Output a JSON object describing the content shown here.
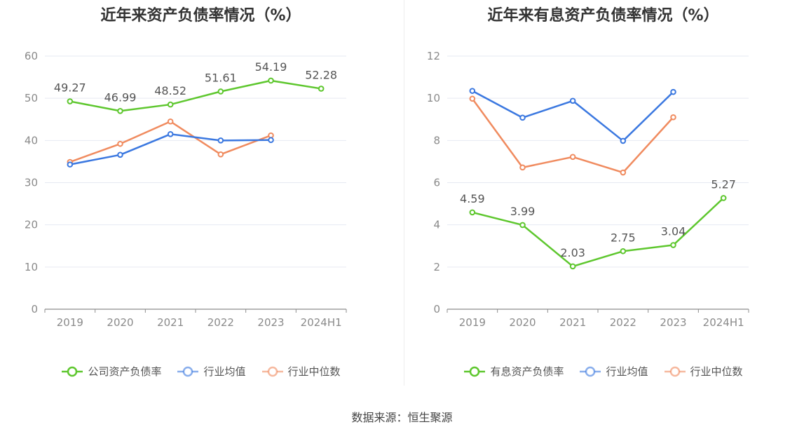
{
  "source_text": "数据来源：恒生聚源",
  "chart_data": [
    {
      "type": "line",
      "title": "近年来资产负债率情况（%）",
      "categories": [
        "2019",
        "2020",
        "2021",
        "2022",
        "2023",
        "2024H1"
      ],
      "ylim": [
        0,
        60
      ],
      "yticks": [
        "0",
        "10",
        "20",
        "30",
        "40",
        "50",
        "60"
      ],
      "grid": true,
      "legend_position": "bottom",
      "series": [
        {
          "name": "公司资产负债率",
          "color": "#5ec72e",
          "values": [
            49.27,
            46.99,
            48.52,
            51.61,
            54.19,
            52.28
          ],
          "labels": [
            "49.27",
            "46.99",
            "48.52",
            "51.61",
            "54.19",
            "52.28"
          ]
        },
        {
          "name": "行业均值",
          "color": "#3b78e0",
          "values": [
            34.3,
            36.6,
            41.5,
            40.0,
            40.1,
            null
          ]
        },
        {
          "name": "行业中位数",
          "color": "#f08b5f",
          "values": [
            34.9,
            39.2,
            44.5,
            36.7,
            41.2,
            null
          ]
        }
      ]
    },
    {
      "type": "line",
      "title": "近年来有息资产负债率情况（%）",
      "categories": [
        "2019",
        "2020",
        "2021",
        "2022",
        "2023",
        "2024H1"
      ],
      "ylim": [
        0,
        12
      ],
      "yticks": [
        "0",
        "2",
        "4",
        "6",
        "8",
        "10",
        "12"
      ],
      "grid": true,
      "legend_position": "bottom",
      "series": [
        {
          "name": "有息资产负债率",
          "color": "#5ec72e",
          "values": [
            4.59,
            3.99,
            2.03,
            2.75,
            3.04,
            5.27
          ],
          "labels": [
            "4.59",
            "3.99",
            "2.03",
            "2.75",
            "3.04",
            "5.27"
          ]
        },
        {
          "name": "行业均值",
          "color": "#3b78e0",
          "values": [
            10.35,
            9.08,
            9.88,
            7.98,
            10.3,
            null
          ]
        },
        {
          "name": "行业中位数",
          "color": "#f08b5f",
          "values": [
            9.98,
            6.72,
            7.22,
            6.48,
            9.1,
            null
          ]
        }
      ]
    }
  ]
}
